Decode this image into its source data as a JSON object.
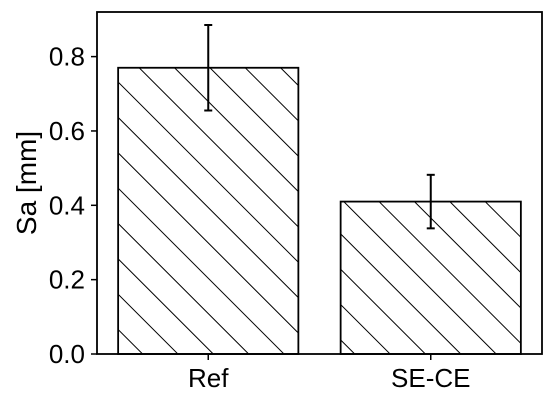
{
  "chart_data": {
    "type": "bar",
    "categories": [
      "Ref",
      "SE-CE"
    ],
    "values": [
      0.77,
      0.41
    ],
    "error": [
      0.115,
      0.072
    ],
    "ylabel": "Sa [mm]",
    "xlabel": "",
    "ylim": [
      0,
      0.92
    ],
    "yticks": [
      0.0,
      0.2,
      0.4,
      0.6,
      0.8
    ],
    "ytick_labels": [
      "0.0",
      "0.2",
      "0.4",
      "0.6",
      "0.8"
    ],
    "bar_fill": "hatched-diagonal",
    "bar_color": "#ffffff",
    "edge_color": "#000000",
    "grid": false,
    "legend": "none"
  }
}
